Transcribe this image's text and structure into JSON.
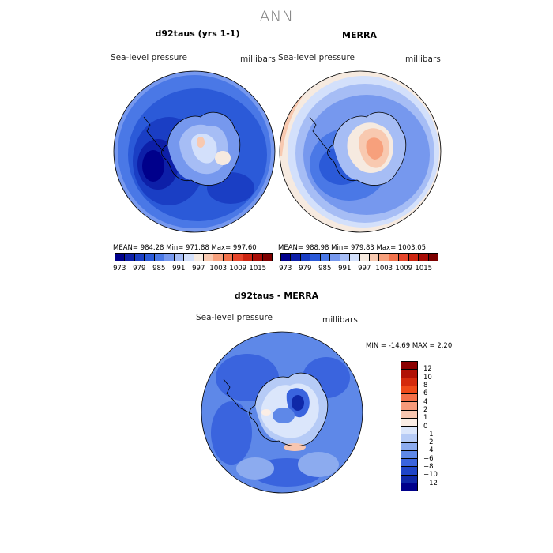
{
  "title": "ANN",
  "panels": [
    {
      "title": "d92taus (yrs 1-1)",
      "variable": "Sea-level pressure",
      "units": "millibars",
      "stats": "MEAN= 984.28   Min= 971.88   Max= 997.60"
    },
    {
      "title": "MERRA",
      "variable": "Sea-level pressure",
      "units": "millibars",
      "stats": "MEAN= 988.98   Min= 979.83   Max= 1003.05"
    },
    {
      "title": "d92taus - MERRA",
      "variable": "Sea-level pressure",
      "units": "millibars",
      "stats": "MIN = -14.69 MAX =    2.20"
    }
  ],
  "colorbar_abs": {
    "labels": [
      "973",
      "979",
      "985",
      "991",
      "997",
      "1003",
      "1009",
      "1015"
    ],
    "colors": [
      "#00008b",
      "#0d1fa8",
      "#1a3ec4",
      "#2b5ad8",
      "#4a78e6",
      "#7698ee",
      "#a6bdf5",
      "#d3e0fb",
      "#f6eae0",
      "#f8c9b0",
      "#f7a07c",
      "#f2724b",
      "#e6452a",
      "#cc2410",
      "#a80c05",
      "#7d0000"
    ]
  },
  "colorbar_diff": {
    "labels": [
      "12",
      "10",
      "8",
      "6",
      "4",
      "2",
      "1",
      "0",
      "−1",
      "−2",
      "−4",
      "−6",
      "−8",
      "−10",
      "−12"
    ],
    "colors": [
      "#8b0000",
      "#b01105",
      "#d42a0c",
      "#ef4a18",
      "#f47048",
      "#f69a7a",
      "#f8c6b0",
      "#fbeee6",
      "#dbe6fb",
      "#b6cbf6",
      "#8cabef",
      "#5e88e8",
      "#3a64de",
      "#1f45c8",
      "#0f28a8",
      "#00008b"
    ]
  }
}
